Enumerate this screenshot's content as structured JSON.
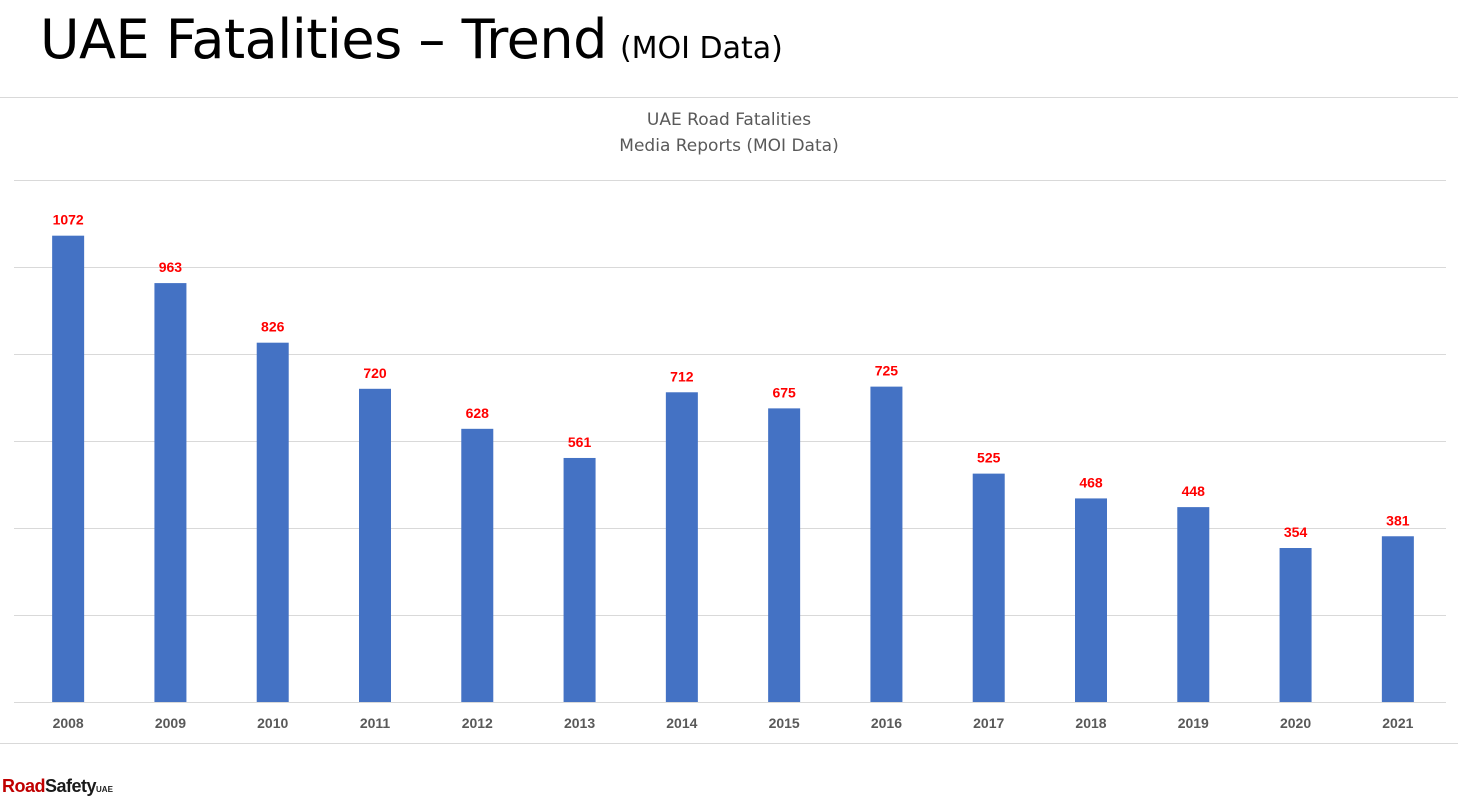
{
  "slide": {
    "title": "UAE Fatalities – Trend",
    "title_suffix": "(MOI Data)"
  },
  "logo": {
    "text_a": "Road",
    "text_b": "Safety",
    "text_c": "UAE"
  },
  "colors": {
    "bar": "#4472c4",
    "data_label": "#ff0000",
    "gridline": "#d9d9d9",
    "tick_label": "#595959"
  },
  "chart_data": {
    "type": "bar",
    "title": "UAE Road Fatalities",
    "subtitle": "Media Reports (MOI Data)",
    "categories": [
      "2008",
      "2009",
      "2010",
      "2011",
      "2012",
      "2013",
      "2014",
      "2015",
      "2016",
      "2017",
      "2018",
      "2019",
      "2020",
      "2021"
    ],
    "values": [
      1072,
      963,
      826,
      720,
      628,
      561,
      712,
      675,
      725,
      525,
      468,
      448,
      354,
      381
    ],
    "ylim": [
      0,
      1200
    ],
    "y_ticks_visible": false,
    "grid": true,
    "legend": "none",
    "data_labels": true
  }
}
